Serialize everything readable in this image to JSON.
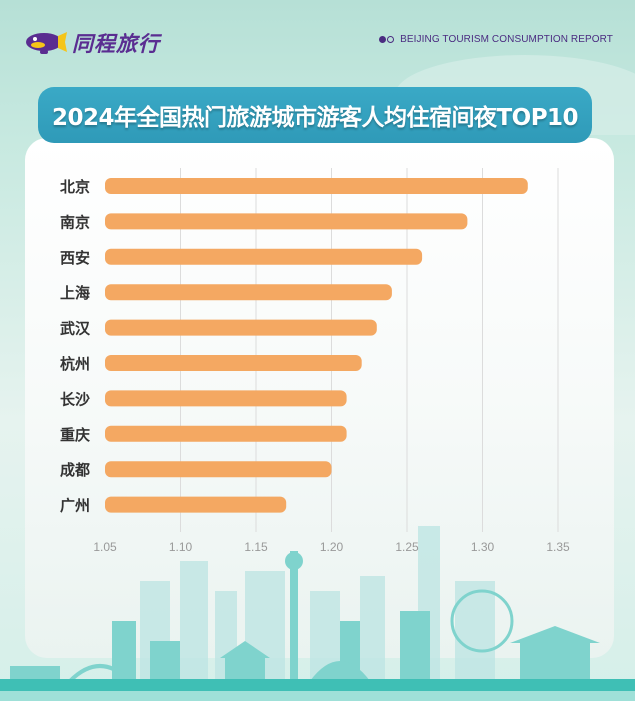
{
  "header": {
    "brand": "同程旅行",
    "report_label": "BEIJING TOURISM CONSUMPTION REPORT"
  },
  "colors": {
    "bar": "#f4a862",
    "banner": "#35a2c0",
    "brand": "#5a2d91"
  },
  "chart_data": {
    "type": "bar",
    "orientation": "horizontal",
    "title": "2024年全国热门旅游城市游客人均住宿间夜TOP10",
    "categories": [
      "北京",
      "南京",
      "西安",
      "上海",
      "武汉",
      "杭州",
      "长沙",
      "重庆",
      "成都",
      "广州"
    ],
    "values": [
      1.33,
      1.29,
      1.26,
      1.24,
      1.23,
      1.22,
      1.21,
      1.21,
      1.2,
      1.17
    ],
    "xlim": [
      1.05,
      1.35
    ],
    "xticks": [
      "1.05",
      "1.10",
      "1.15",
      "1.20",
      "1.25",
      "1.30",
      "1.35"
    ],
    "xlabel": "",
    "ylabel": "",
    "grid": true
  }
}
